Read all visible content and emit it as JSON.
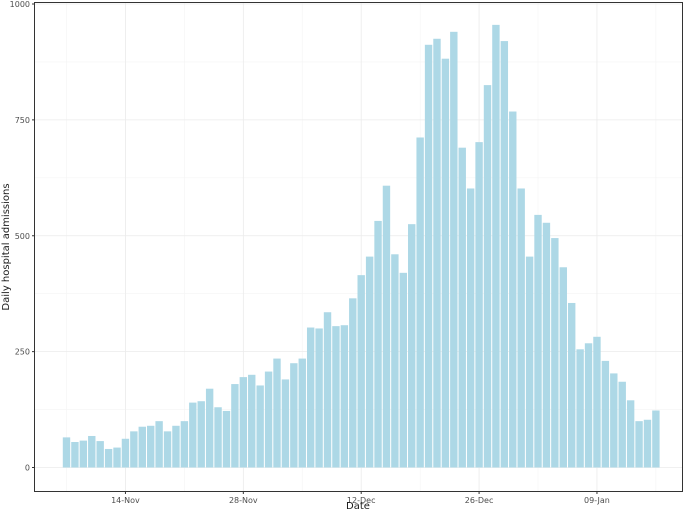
{
  "chart_data": {
    "type": "bar",
    "title": "",
    "xlabel": "Date",
    "ylabel": "Daily hospital admissions",
    "ylim": [
      -50,
      1000
    ],
    "y_ticks": [
      0,
      250,
      500,
      750,
      1000
    ],
    "y_tick_labels": [
      "0",
      "250",
      "500",
      "750",
      "1000"
    ],
    "x_tick_labels": [
      "14-Nov",
      "28-Nov",
      "12-Dec",
      "26-Dec",
      "09-Jan"
    ],
    "x_tick_indices": [
      7,
      21,
      35,
      49,
      63
    ],
    "bar_color": "#add8e6",
    "grid": true,
    "legend": "none",
    "first_date": "07-Nov",
    "values": [
      65,
      55,
      58,
      68,
      57,
      40,
      43,
      62,
      78,
      88,
      90,
      100,
      78,
      90,
      100,
      140,
      143,
      170,
      130,
      122,
      180,
      195,
      200,
      177,
      207,
      235,
      190,
      225,
      235,
      302,
      300,
      335,
      305,
      307,
      365,
      415,
      455,
      532,
      608,
      460,
      420,
      525,
      712,
      912,
      925,
      882,
      940,
      690,
      602,
      702,
      825,
      955,
      920,
      768,
      602,
      455,
      545,
      528,
      495,
      432,
      355,
      255,
      268,
      282,
      230,
      203,
      185,
      145,
      100,
      103,
      123
    ]
  }
}
